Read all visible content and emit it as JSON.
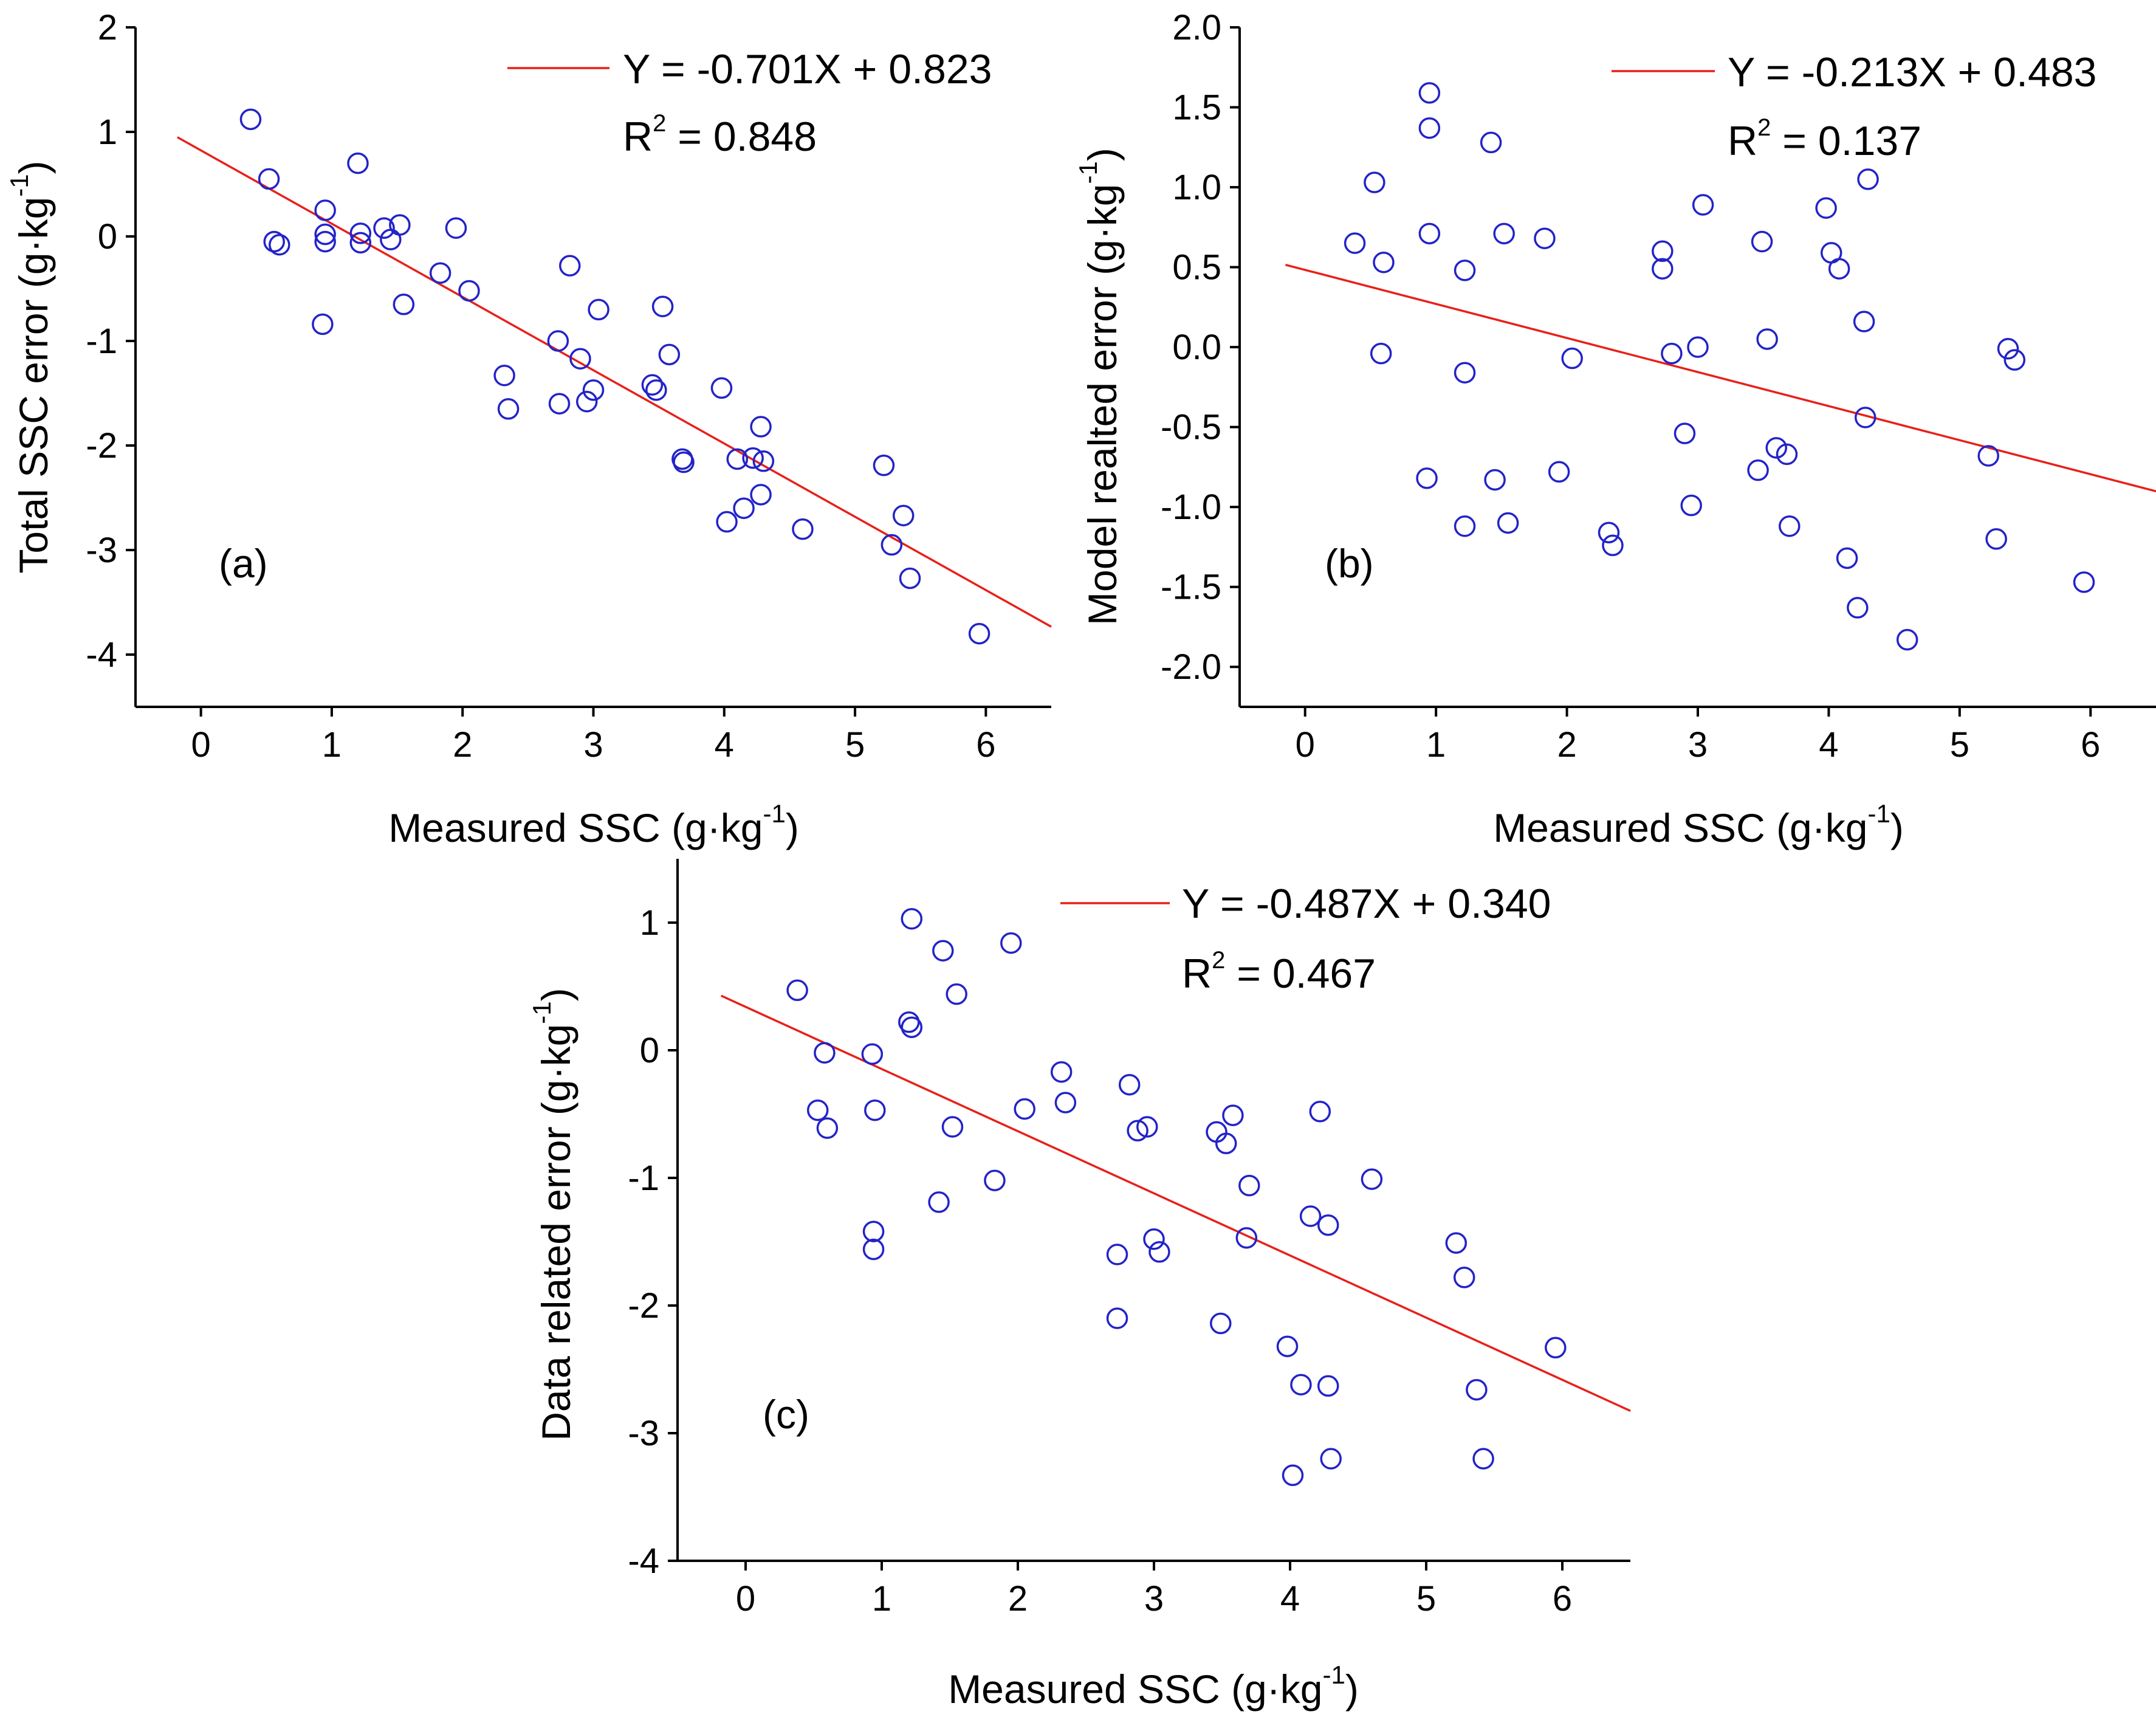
{
  "colors": {
    "point": "#2323c8",
    "fit": "#e8201a",
    "axis": "#000000"
  },
  "chart_data": [
    {
      "type": "scatter",
      "panel_label": "(a)",
      "xlabel": "Measured SSC (g·kg",
      "xlabel_sup": "-1",
      "xlabel_close": ")",
      "ylabel": "Total SSC error (g·kg",
      "ylabel_sup": "-1",
      "ylabel_close": ")",
      "xlim": [
        -0.5,
        6.5
      ],
      "ylim": [
        -4.5,
        2
      ],
      "xticks": [
        0,
        1,
        2,
        3,
        4,
        5,
        6
      ],
      "yticks": [
        -4,
        -3,
        -2,
        -1,
        0,
        1,
        2
      ],
      "ytick_decimals": 0,
      "fit": {
        "slope": -0.701,
        "intercept": 0.823,
        "x0": -0.18,
        "x1": 6.5
      },
      "legend": {
        "equation": "Y = -0.701X + 0.823",
        "r2_prefix": "R",
        "r2_sup": "2",
        "r2_value": " = 0.848"
      },
      "points": [
        [
          0.38,
          1.12
        ],
        [
          0.52,
          0.55
        ],
        [
          0.56,
          -0.05
        ],
        [
          0.6,
          -0.08
        ],
        [
          0.93,
          -0.84
        ],
        [
          0.95,
          0.25
        ],
        [
          0.95,
          0.02
        ],
        [
          0.95,
          -0.05
        ],
        [
          1.2,
          0.7
        ],
        [
          1.22,
          0.03
        ],
        [
          1.22,
          -0.06
        ],
        [
          1.4,
          0.08
        ],
        [
          1.45,
          -0.03
        ],
        [
          1.52,
          0.11
        ],
        [
          1.55,
          -0.65
        ],
        [
          1.83,
          -0.35
        ],
        [
          1.95,
          0.08
        ],
        [
          2.05,
          -0.52
        ],
        [
          2.32,
          -1.33
        ],
        [
          2.35,
          -1.65
        ],
        [
          2.73,
          -1.0
        ],
        [
          2.74,
          -1.6
        ],
        [
          2.82,
          -0.28
        ],
        [
          2.9,
          -1.17
        ],
        [
          2.95,
          -1.58
        ],
        [
          3.0,
          -1.47
        ],
        [
          3.04,
          -0.7
        ],
        [
          3.45,
          -1.42
        ],
        [
          3.48,
          -1.47
        ],
        [
          3.53,
          -0.67
        ],
        [
          3.58,
          -1.13
        ],
        [
          3.68,
          -2.13
        ],
        [
          3.69,
          -2.16
        ],
        [
          3.98,
          -1.45
        ],
        [
          4.02,
          -2.73
        ],
        [
          4.1,
          -2.13
        ],
        [
          4.15,
          -2.6
        ],
        [
          4.22,
          -2.12
        ],
        [
          4.28,
          -1.82
        ],
        [
          4.28,
          -2.47
        ],
        [
          4.3,
          -2.15
        ],
        [
          4.6,
          -2.8
        ],
        [
          5.22,
          -2.19
        ],
        [
          5.28,
          -2.95
        ],
        [
          5.37,
          -2.67
        ],
        [
          5.42,
          -3.27
        ],
        [
          5.95,
          -3.8
        ]
      ]
    },
    {
      "type": "scatter",
      "panel_label": "(b)",
      "xlabel": "Measured SSC (g·kg",
      "xlabel_sup": "-1",
      "xlabel_close": ")",
      "ylabel": "Model realted error (g·kg",
      "ylabel_sup": "-1",
      "ylabel_close": ")",
      "xlim": [
        -0.5,
        6.5
      ],
      "ylim": [
        -2.25,
        2.0
      ],
      "xticks": [
        0,
        1,
        2,
        3,
        4,
        5,
        6
      ],
      "yticks": [
        -2.0,
        -1.5,
        -1.0,
        -0.5,
        0.0,
        0.5,
        1.0,
        1.5,
        2.0
      ],
      "ytick_decimals": 1,
      "fit": {
        "slope": -0.213,
        "intercept": 0.483,
        "x0": -0.15,
        "x1": 6.5
      },
      "legend": {
        "equation": "Y = -0.213X + 0.483",
        "r2_prefix": "R",
        "r2_sup": "2",
        "r2_value": " = 0.137"
      },
      "points": [
        [
          0.38,
          0.65
        ],
        [
          0.53,
          1.03
        ],
        [
          0.58,
          -0.04
        ],
        [
          0.6,
          0.53
        ],
        [
          0.93,
          -0.82
        ],
        [
          0.95,
          1.59
        ],
        [
          0.95,
          1.37
        ],
        [
          0.95,
          0.71
        ],
        [
          1.22,
          0.48
        ],
        [
          1.22,
          -0.16
        ],
        [
          1.22,
          -1.12
        ],
        [
          1.42,
          1.28
        ],
        [
          1.45,
          -0.83
        ],
        [
          1.52,
          0.71
        ],
        [
          1.55,
          -1.1
        ],
        [
          1.83,
          0.68
        ],
        [
          1.94,
          -0.78
        ],
        [
          2.04,
          -0.07
        ],
        [
          2.32,
          -1.16
        ],
        [
          2.35,
          -1.24
        ],
        [
          2.73,
          0.6
        ],
        [
          2.73,
          0.49
        ],
        [
          2.8,
          -0.04
        ],
        [
          2.9,
          -0.54
        ],
        [
          2.95,
          -0.99
        ],
        [
          3.0,
          0.0
        ],
        [
          3.04,
          0.89
        ],
        [
          3.46,
          -0.77
        ],
        [
          3.49,
          0.66
        ],
        [
          3.53,
          0.05
        ],
        [
          3.6,
          -0.63
        ],
        [
          3.68,
          -0.67
        ],
        [
          3.7,
          -1.12
        ],
        [
          3.98,
          0.87
        ],
        [
          4.02,
          0.59
        ],
        [
          4.08,
          0.49
        ],
        [
          4.14,
          -1.32
        ],
        [
          4.22,
          -1.63
        ],
        [
          4.27,
          0.16
        ],
        [
          4.28,
          -0.44
        ],
        [
          4.3,
          1.05
        ],
        [
          4.6,
          -1.83
        ],
        [
          5.22,
          -0.68
        ],
        [
          5.28,
          -1.2
        ],
        [
          5.37,
          -0.01
        ],
        [
          5.42,
          -0.08
        ],
        [
          5.95,
          -1.47
        ]
      ]
    },
    {
      "type": "scatter",
      "panel_label": "(c)",
      "xlabel": "Measured SSC (g·kg",
      "xlabel_sup": "-1",
      "xlabel_close": ")",
      "ylabel": "Data related error (g·kg",
      "ylabel_sup": "-1",
      "ylabel_close": ")",
      "xlim": [
        -0.5,
        6.5
      ],
      "ylim": [
        -4,
        1.5
      ],
      "xticks": [
        0,
        1,
        2,
        3,
        4,
        5,
        6
      ],
      "yticks": [
        -4,
        -3,
        -2,
        -1,
        0,
        1
      ],
      "ytick_decimals": 0,
      "fit": {
        "slope": -0.487,
        "intercept": 0.34,
        "x0": -0.18,
        "x1": 6.5
      },
      "legend": {
        "equation": "Y = -0.487X + 0.340",
        "r2_prefix": "R",
        "r2_sup": "2",
        "r2_value": " = 0.467"
      },
      "points": [
        [
          0.38,
          0.47
        ],
        [
          0.53,
          -0.47
        ],
        [
          0.58,
          -0.02
        ],
        [
          0.6,
          -0.61
        ],
        [
          0.93,
          -0.03
        ],
        [
          0.94,
          -1.42
        ],
        [
          0.94,
          -1.56
        ],
        [
          0.95,
          -0.47
        ],
        [
          1.22,
          1.03
        ],
        [
          1.2,
          0.22
        ],
        [
          1.22,
          0.18
        ],
        [
          1.42,
          -1.19
        ],
        [
          1.45,
          0.78
        ],
        [
          1.52,
          -0.6
        ],
        [
          1.55,
          0.44
        ],
        [
          1.83,
          -1.02
        ],
        [
          1.95,
          0.84
        ],
        [
          2.05,
          -0.46
        ],
        [
          2.32,
          -0.17
        ],
        [
          2.35,
          -0.41
        ],
        [
          2.73,
          -1.6
        ],
        [
          2.73,
          -2.1
        ],
        [
          2.82,
          -0.27
        ],
        [
          2.88,
          -0.63
        ],
        [
          2.95,
          -0.6
        ],
        [
          3.0,
          -1.48
        ],
        [
          3.04,
          -1.58
        ],
        [
          3.46,
          -0.64
        ],
        [
          3.49,
          -2.14
        ],
        [
          3.53,
          -0.73
        ],
        [
          3.58,
          -0.51
        ],
        [
          3.68,
          -1.47
        ],
        [
          3.7,
          -1.06
        ],
        [
          3.98,
          -2.32
        ],
        [
          4.02,
          -3.33
        ],
        [
          4.08,
          -2.62
        ],
        [
          4.15,
          -1.3
        ],
        [
          4.22,
          -0.48
        ],
        [
          4.28,
          -2.63
        ],
        [
          4.28,
          -1.37
        ],
        [
          4.3,
          -3.2
        ],
        [
          4.6,
          -1.01
        ],
        [
          5.22,
          -1.51
        ],
        [
          5.28,
          -1.78
        ],
        [
          5.37,
          -2.66
        ],
        [
          5.42,
          -3.2
        ],
        [
          5.95,
          -2.33
        ]
      ]
    }
  ]
}
